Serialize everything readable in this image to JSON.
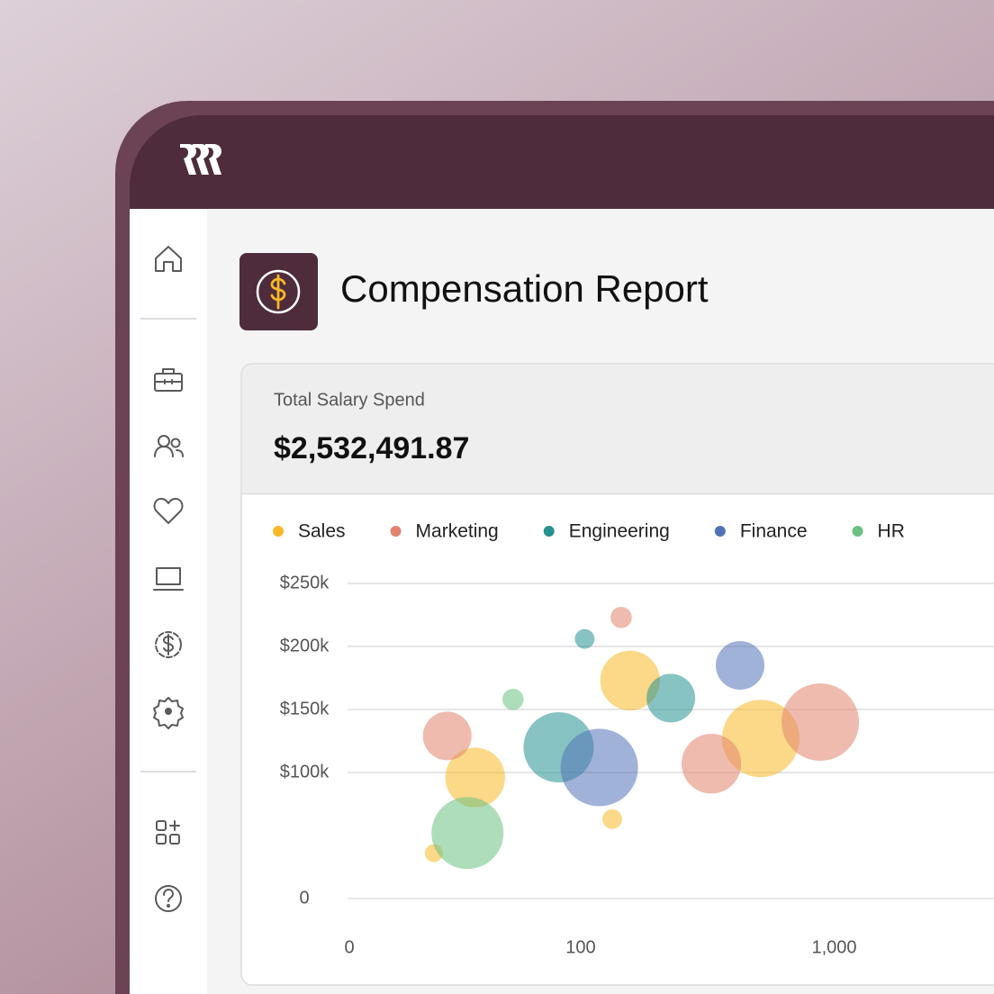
{
  "report": {
    "title": "Compensation Report",
    "total_label": "Total Salary Spend",
    "total_value": "$2,532,491.87"
  },
  "chart_data": {
    "type": "bubble",
    "xscale": "symlog",
    "grid": true,
    "xlim": [
      0,
      4000
    ],
    "xticks": [
      0,
      100,
      {
        "value": 1000,
        "label": "1,000"
      }
    ],
    "ylim": [
      0,
      250000
    ],
    "yticks": [
      0,
      {
        "value": 100000,
        "label": "$100k"
      },
      {
        "value": 150000,
        "label": "$150k"
      },
      {
        "value": 200000,
        "label": "$200k"
      },
      {
        "value": 250000,
        "label": "$250k"
      }
    ],
    "series": [
      {
        "name": "Sales",
        "color": "#f7b928",
        "x": [
          17,
          31,
          161,
          136,
          526
        ],
        "values": [
          36000,
          96000,
          173000,
          63000,
          127000
        ],
        "sizes": [
          100,
          1100,
          1100,
          120,
          1850
        ]
      },
      {
        "name": "Marketing",
        "color": "#e2846d",
        "x": [
          21,
          148,
          339,
          886
        ],
        "values": [
          129000,
          223000,
          107000,
          140000
        ],
        "sizes": [
          730,
          140,
          1100,
          1850
        ]
      },
      {
        "name": "Engineering",
        "color": "#24918f",
        "x": [
          104,
          80,
          235
        ],
        "values": [
          206000,
          120000,
          159000
        ],
        "sizes": [
          120,
          1520,
          730
        ]
      },
      {
        "name": "Finance",
        "color": "#5272b8",
        "x": [
          120,
          438
        ],
        "values": [
          104000,
          185000
        ],
        "sizes": [
          1850,
          730
        ]
      },
      {
        "name": "HR",
        "color": "#6cc183",
        "x": [
          49,
          28
        ],
        "values": [
          158000,
          52000
        ],
        "sizes": [
          140,
          1600
        ]
      }
    ]
  }
}
